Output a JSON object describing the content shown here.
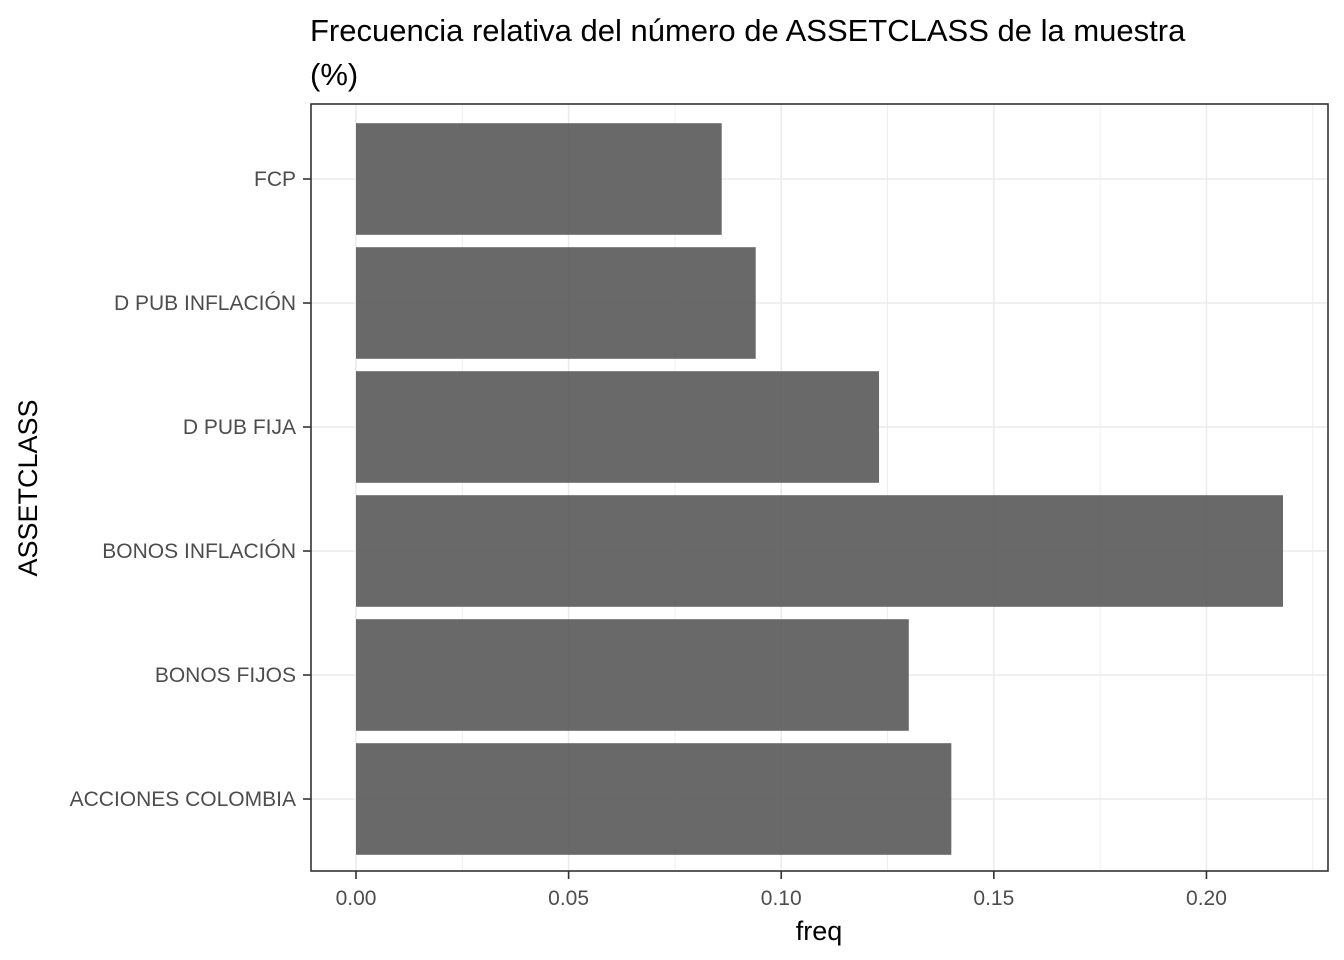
{
  "chart_data": {
    "type": "bar",
    "orientation": "horizontal",
    "title": "Frecuencia relativa del número de ASSETCLASS de la muestra",
    "subtitle": "(%)",
    "xlabel": "freq",
    "ylabel": "ASSETCLASS",
    "categories": [
      "ACCIONES COLOMBIA",
      "BONOS FIJOS",
      "BONOS INFLACIÓN",
      "D PUB FIJA",
      "D PUB INFLACIÓN",
      "FCP"
    ],
    "values": [
      0.14,
      0.13,
      0.218,
      0.123,
      0.094,
      0.086
    ],
    "xlim": [
      0.0,
      0.229
    ],
    "xticks": [
      0.0,
      0.05,
      0.1,
      0.15,
      0.2
    ],
    "xtick_labels": [
      "0.00",
      "0.05",
      "0.10",
      "0.15",
      "0.20"
    ],
    "grid": true,
    "bar_color": "#595959",
    "bar_opacity": 0.9
  }
}
